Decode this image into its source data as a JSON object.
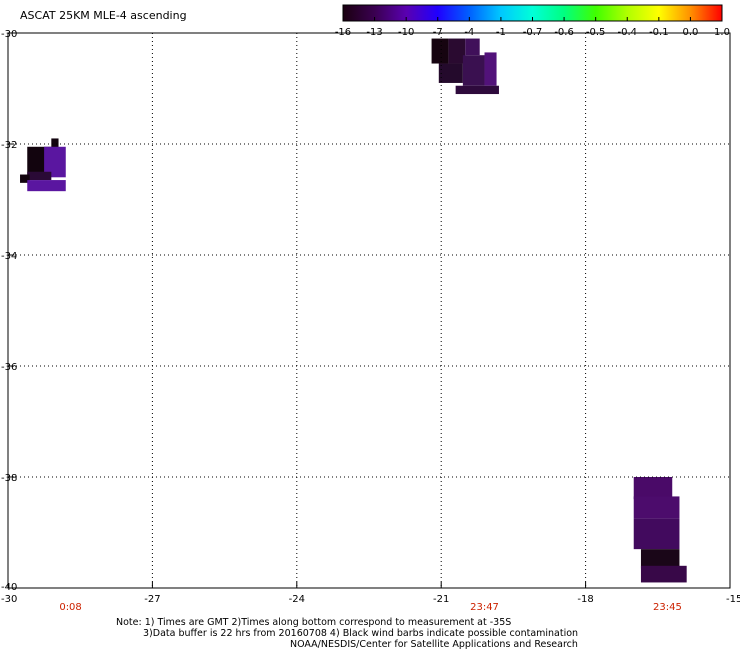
{
  "title": "ASCAT 25KM MLE-4 ascending",
  "colorbar": {
    "ticks": [
      "-16",
      "-13",
      "-10",
      "-7",
      "-4",
      "-1",
      "-0.7",
      "-0.6",
      "-0.5",
      "-0.4",
      "-0.1",
      "0.0",
      "1.0"
    ],
    "colors": [
      "#1a0010",
      "#3a0050",
      "#5a00b0",
      "#2000ff",
      "#0060ff",
      "#00c8ff",
      "#00ffd8",
      "#00ff80",
      "#40ff00",
      "#b0ff00",
      "#ffff00",
      "#ff9000",
      "#ff0000"
    ]
  },
  "map": {
    "lon_range": [
      -30,
      -15
    ],
    "lat_range": [
      -40,
      -30
    ],
    "lon_ticks": [
      -27,
      -24,
      -21,
      -18
    ],
    "lat_ticks": [
      -32,
      -34,
      -36,
      -38
    ],
    "corner_labels": {
      "top_left": "-30",
      "bottom_left_y": "-40",
      "bottom_left_x": "-30",
      "bottom_right_x": "-15"
    },
    "times": [
      {
        "lon": -28.7,
        "label": "0:08"
      },
      {
        "lon": -20.1,
        "label": "23:47"
      },
      {
        "lon": -16.3,
        "label": "23:45"
      }
    ],
    "swath_cells": [
      {
        "lon": -21.2,
        "lat": -30.1,
        "w": 0.35,
        "h": 0.45,
        "color": "#160410"
      },
      {
        "lon": -20.85,
        "lat": -30.1,
        "w": 0.35,
        "h": 0.45,
        "color": "#2a0a30"
      },
      {
        "lon": -20.5,
        "lat": -30.1,
        "w": 0.3,
        "h": 0.3,
        "color": "#40105a"
      },
      {
        "lon": -21.05,
        "lat": -30.55,
        "w": 0.5,
        "h": 0.35,
        "color": "#240a2c"
      },
      {
        "lon": -20.55,
        "lat": -30.4,
        "w": 0.45,
        "h": 0.55,
        "color": "#3a1050"
      },
      {
        "lon": -20.1,
        "lat": -30.35,
        "w": 0.25,
        "h": 0.6,
        "color": "#52127a"
      },
      {
        "lon": -20.7,
        "lat": -30.95,
        "w": 0.9,
        "h": 0.15,
        "color": "#2e0a3c"
      },
      {
        "lon": -29.6,
        "lat": -32.05,
        "w": 0.5,
        "h": 0.5,
        "color": "#12040e"
      },
      {
        "lon": -29.1,
        "lat": -31.9,
        "w": 0.15,
        "h": 0.2,
        "color": "#12040e"
      },
      {
        "lon": -29.25,
        "lat": -32.05,
        "w": 0.45,
        "h": 0.55,
        "color": "#5a16a0"
      },
      {
        "lon": -29.6,
        "lat": -32.5,
        "w": 0.5,
        "h": 0.15,
        "color": "#2a0a36"
      },
      {
        "lon": -29.75,
        "lat": -32.55,
        "w": 0.2,
        "h": 0.15,
        "color": "#12040e"
      },
      {
        "lon": -29.6,
        "lat": -32.65,
        "w": 0.8,
        "h": 0.2,
        "color": "#5a16a0"
      },
      {
        "lon": -17.0,
        "lat": -38.0,
        "w": 0.8,
        "h": 0.4,
        "color": "#4a0a68"
      },
      {
        "lon": -17.0,
        "lat": -38.35,
        "w": 0.95,
        "h": 0.4,
        "color": "#4c0c6c"
      },
      {
        "lon": -17.0,
        "lat": -38.75,
        "w": 0.95,
        "h": 0.55,
        "color": "#420a5e"
      },
      {
        "lon": -16.85,
        "lat": -39.3,
        "w": 0.8,
        "h": 0.35,
        "color": "#1a0618"
      },
      {
        "lon": -16.85,
        "lat": -39.6,
        "w": 0.95,
        "h": 0.3,
        "color": "#380848"
      }
    ]
  },
  "notes": {
    "line1": "Note: 1) Times are GMT 2)Times along bottom correspond to measurement at -35S",
    "line2": "3)Data buffer is 22 hrs from 20160708 4) Black wind barbs indicate possible contamination",
    "line3": "NOAA/NESDIS/Center for Satellite Applications and Research"
  }
}
